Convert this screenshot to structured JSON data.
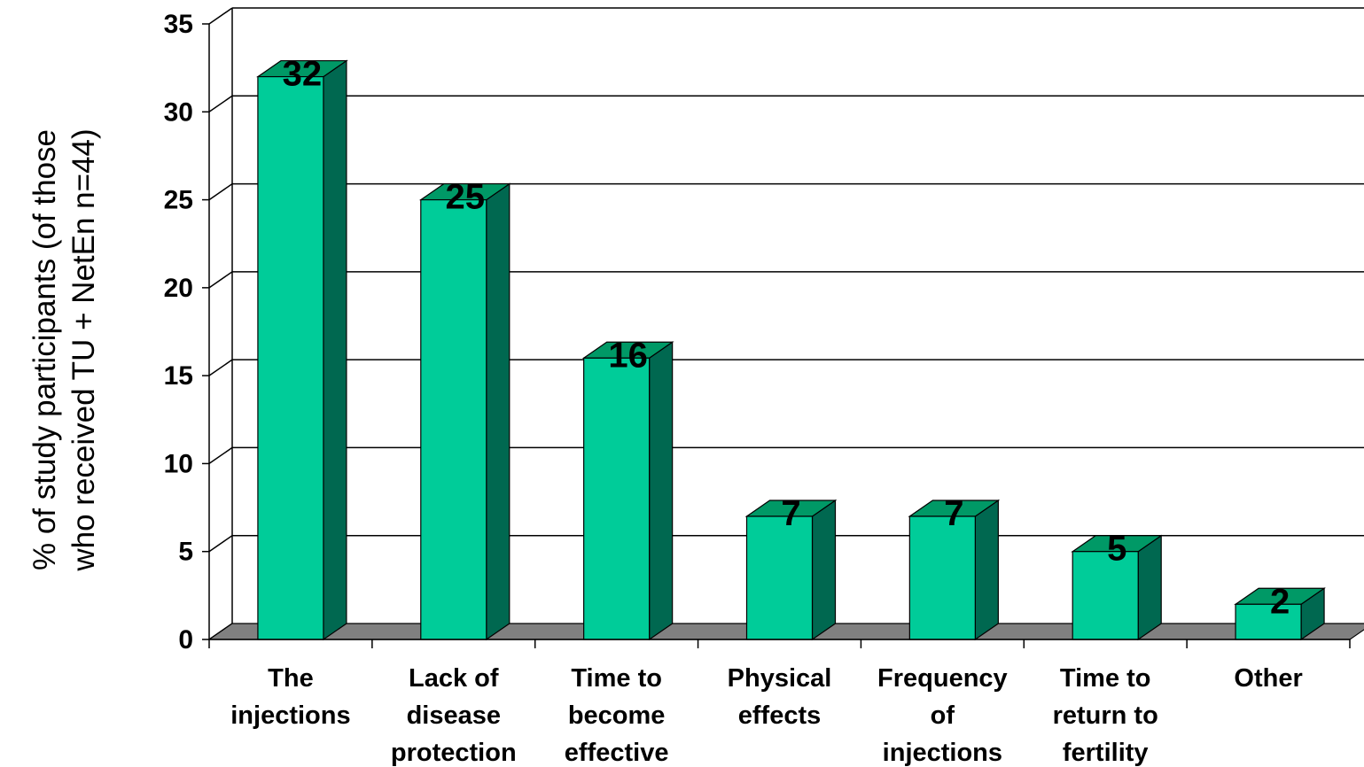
{
  "chart_data": {
    "type": "bar",
    "style": "3d",
    "categories": [
      [
        "The",
        "injections"
      ],
      [
        "Lack of",
        "disease",
        "protection"
      ],
      [
        "Time to",
        "become",
        "effective"
      ],
      [
        "Physical",
        "effects"
      ],
      [
        "Frequency",
        "of",
        "injections"
      ],
      [
        "Time to",
        "return to",
        "fertility"
      ],
      [
        "Other"
      ]
    ],
    "values": [
      32,
      25,
      16,
      7,
      7,
      5,
      2
    ],
    "data_labels": [
      "32",
      "25",
      "16",
      "7",
      "7",
      "5",
      "2"
    ],
    "ylabel": [
      "% of study participants (of those",
      "who received TU + NetEn n=44)"
    ],
    "xlabel": "",
    "title": "",
    "ylim": [
      0,
      35
    ],
    "yticks": [
      0,
      5,
      10,
      15,
      20,
      25,
      30,
      35
    ],
    "grid": true,
    "legend": "none",
    "colors": {
      "bar_front": "#00CC99",
      "bar_top": "#009966",
      "bar_side": "#006850",
      "floor": "#808080",
      "gridline": "#000000"
    }
  }
}
